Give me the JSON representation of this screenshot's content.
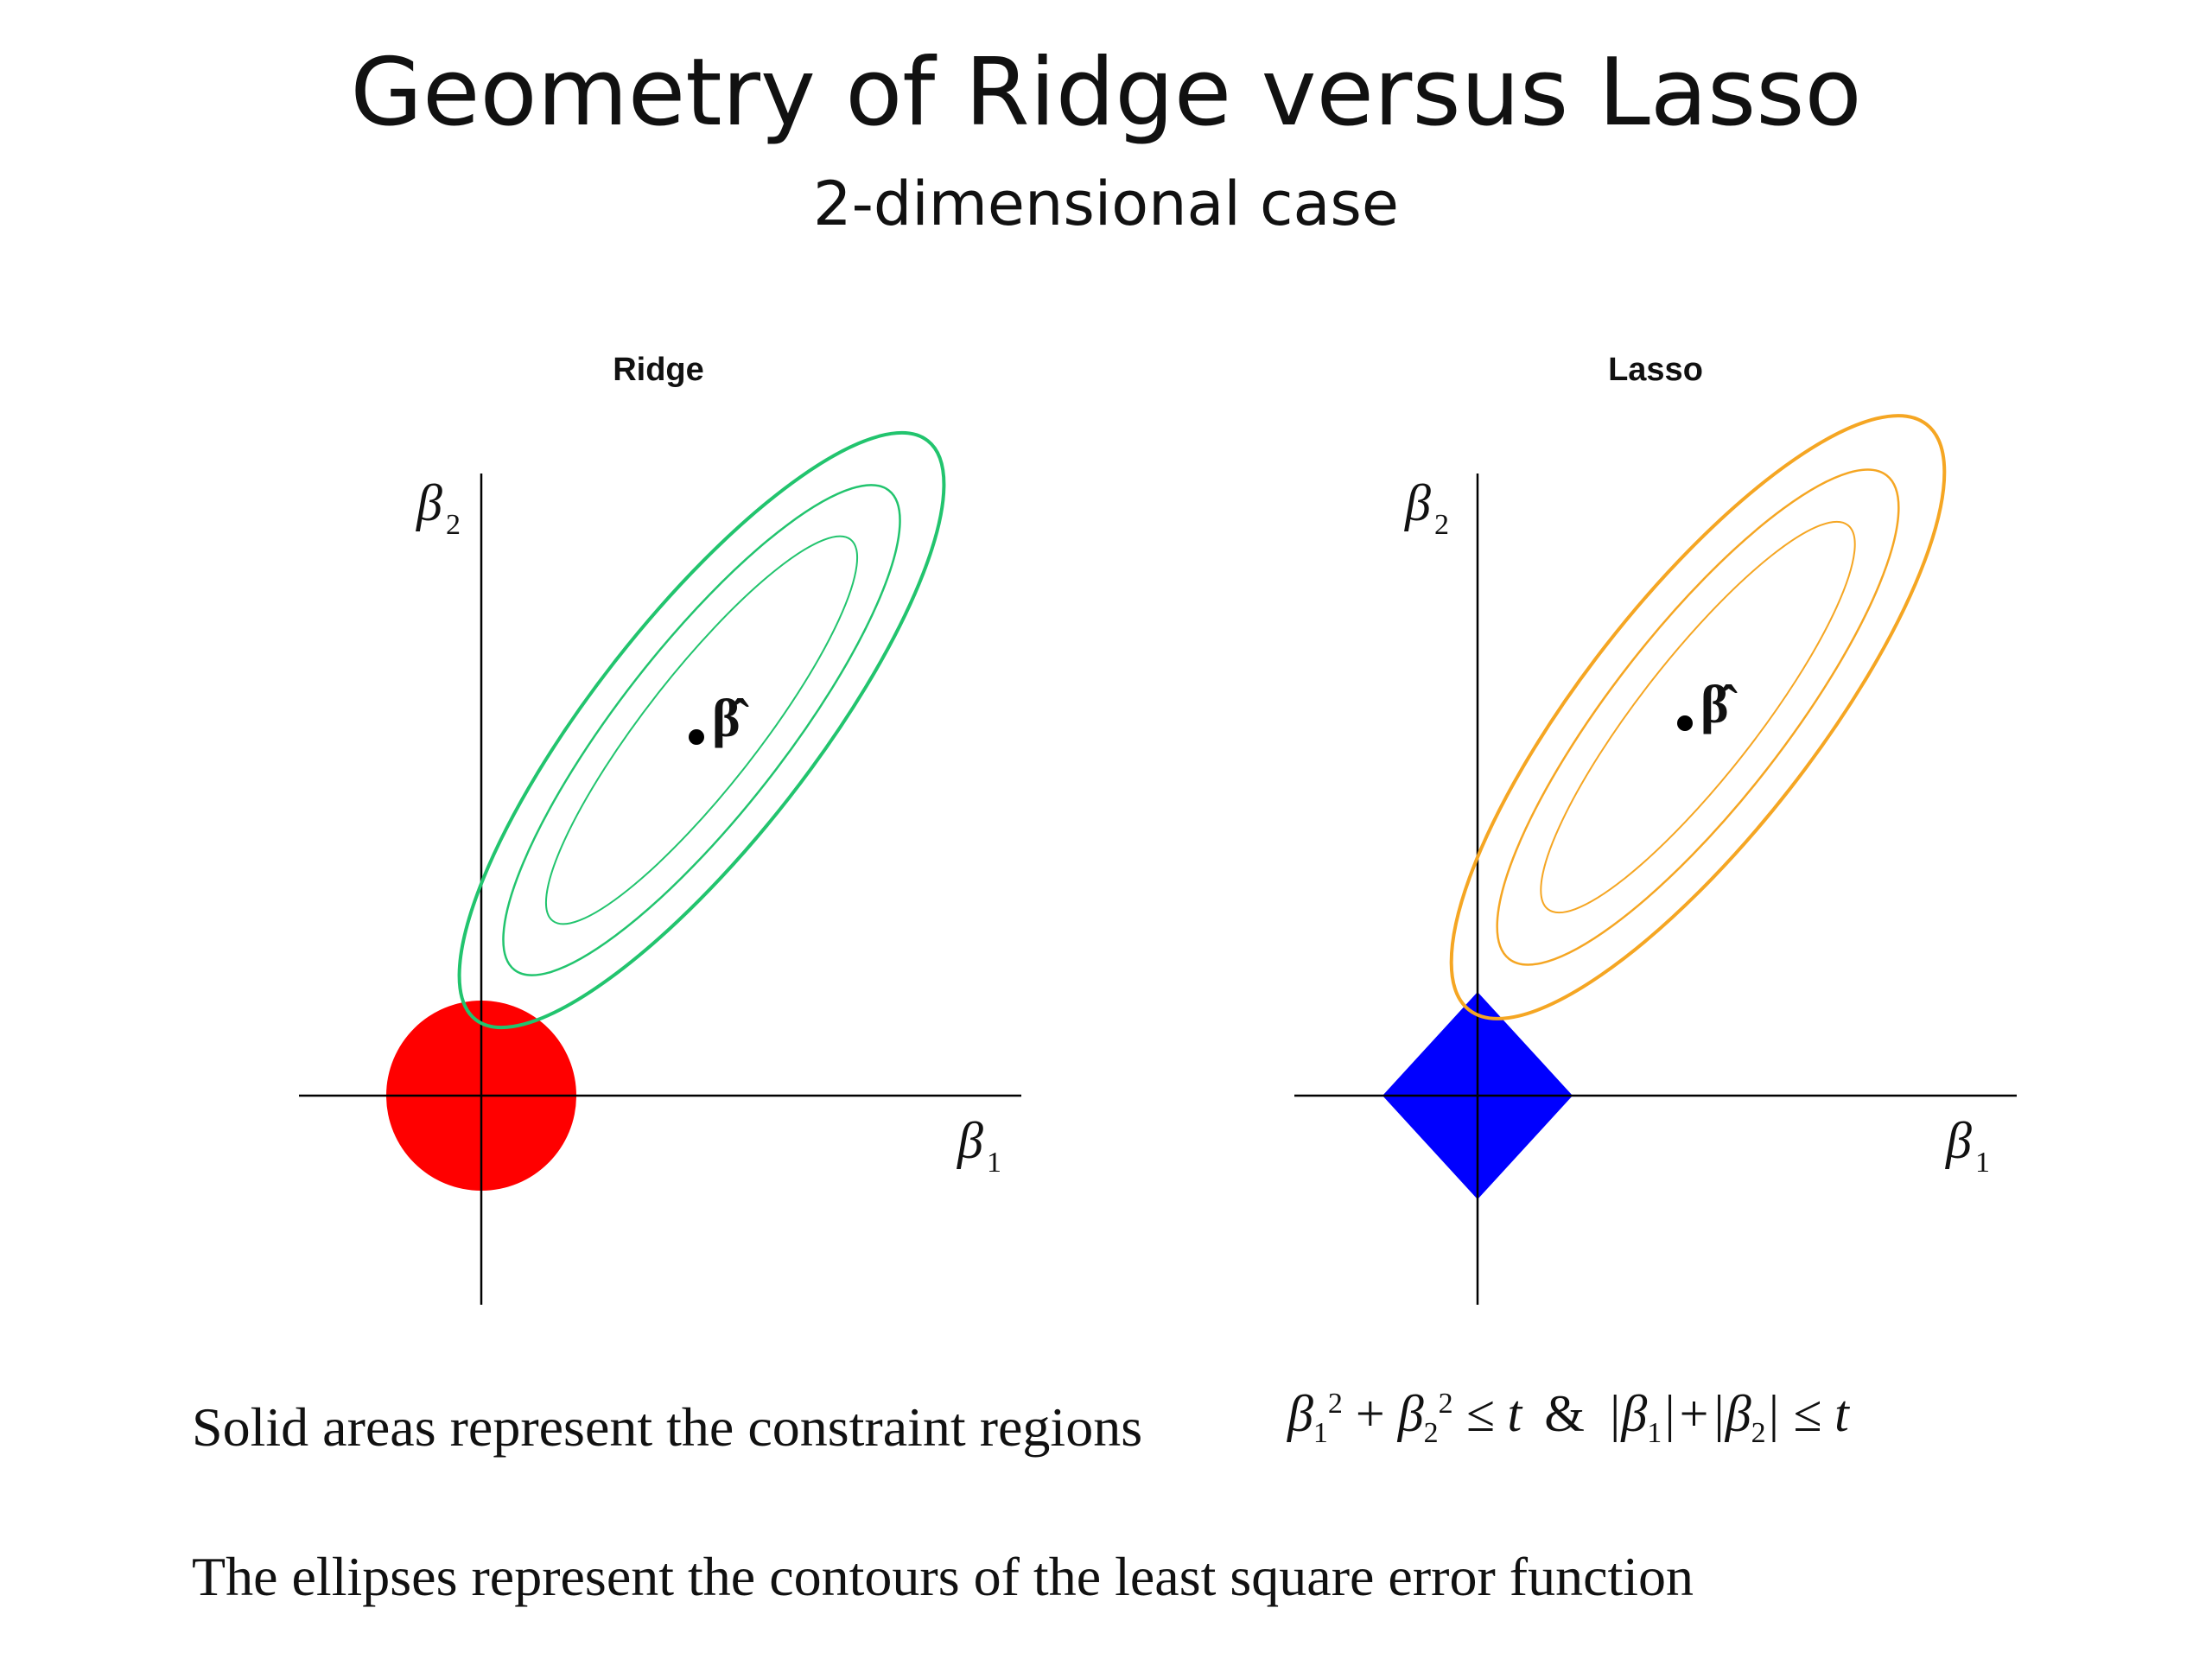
{
  "slide": {
    "title": "Geometry of Ridge versus Lasso",
    "subtitle": "2-dimensional case"
  },
  "panels": [
    {
      "title": "Ridge",
      "x_label": "β",
      "x_label_sub": "1",
      "y_label": "β",
      "y_label_sub": "2",
      "estimate_label": "β̂",
      "constraint_shape": "circle",
      "constraint_color": "#ff0000",
      "contour_color": "#22c46e"
    },
    {
      "title": "Lasso",
      "x_label": "β",
      "x_label_sub": "1",
      "y_label": "β",
      "y_label_sub": "2",
      "estimate_label": "β̂",
      "constraint_shape": "diamond",
      "constraint_color": "#0000ff",
      "contour_color": "#f5a623"
    }
  ],
  "captions": {
    "constraint_text": "Solid areas represent the constraint regions",
    "formula_ridge_b": "β",
    "formula_ridge_sub1": "1",
    "formula_ridge_sup1": "2",
    "formula_plus": " + ",
    "formula_ridge_sub2": "2",
    "formula_ridge_sup2": "2",
    "formula_le_t": " ≤ t",
    "formula_amp": "&",
    "formula_lasso": "|β",
    "formula_lasso_sub1": "1",
    "formula_lasso_mid": "|+|β",
    "formula_lasso_sub2": "2",
    "formula_lasso_end": "| ≤ t",
    "ellipse_text": "The ellipses represent the contours of the least square error function"
  }
}
